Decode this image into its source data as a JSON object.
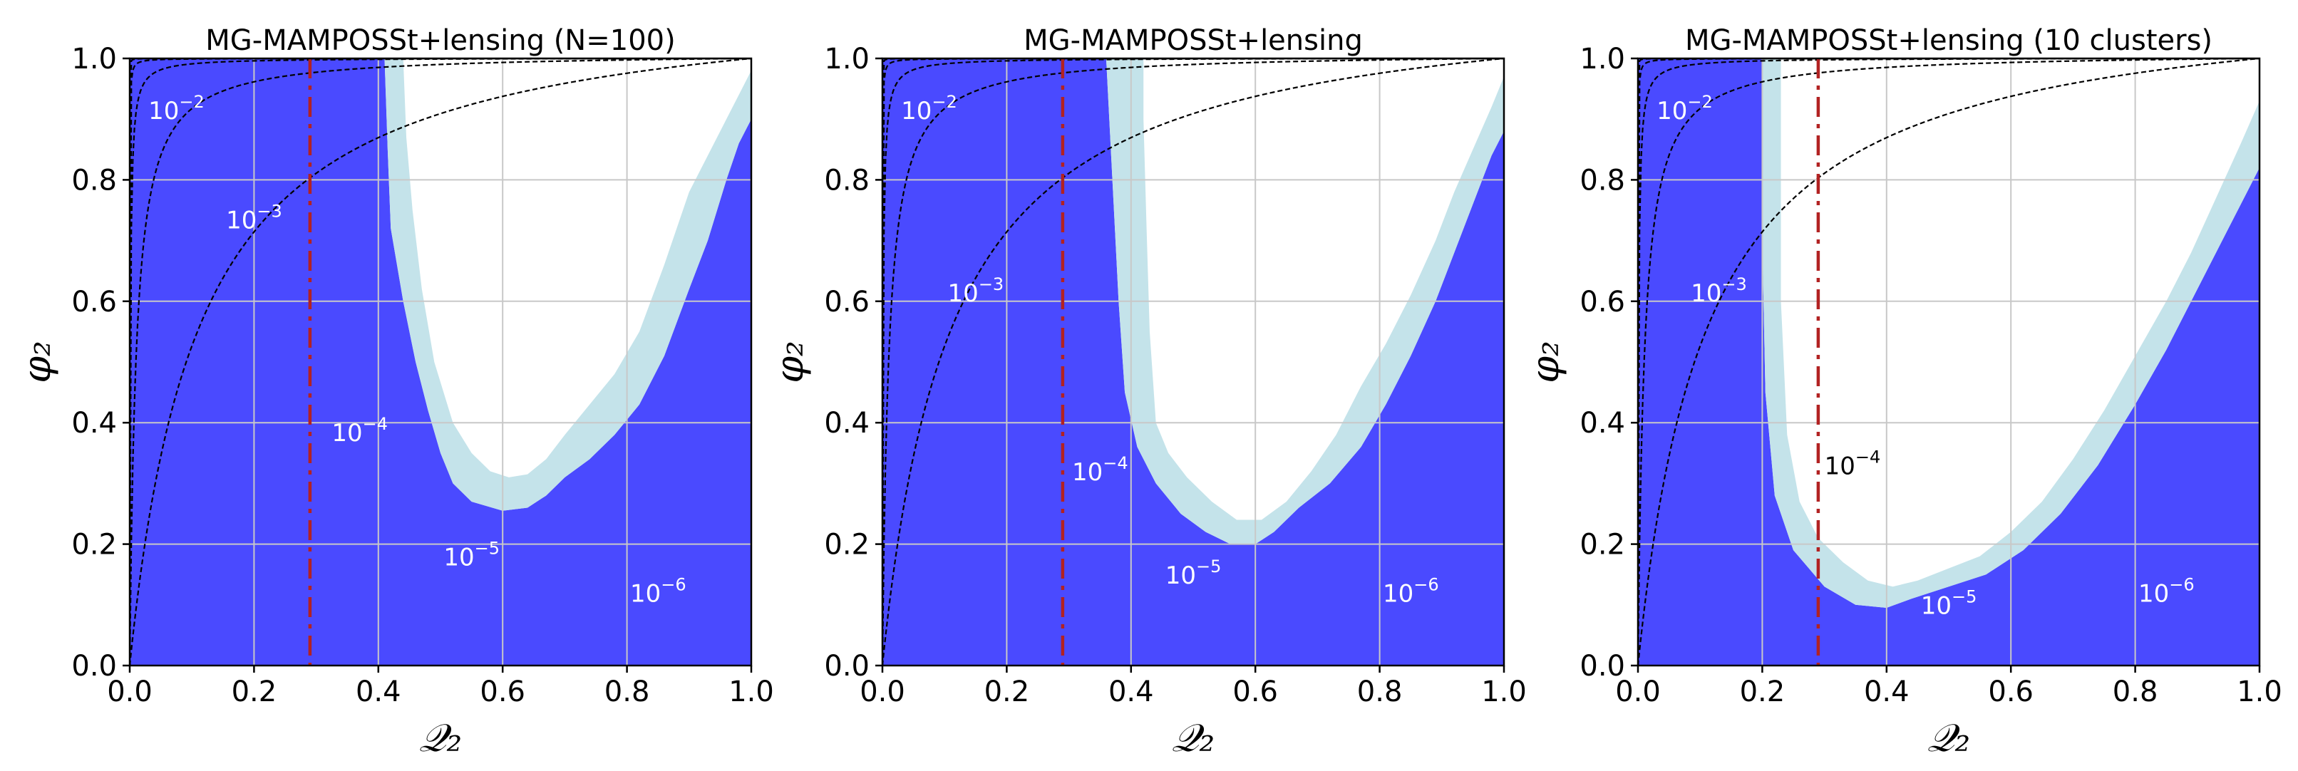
{
  "colors": {
    "excluded_dark": "#4a4aff",
    "excluded_light": "#c4e3ea",
    "grid": "#c8c8c8",
    "contour": "#000000",
    "vline": "#b22222",
    "label_light": "#ffffff",
    "label_dark": "#000000"
  },
  "chart_data": [
    {
      "type": "area",
      "title": "MG-MAMPOSSt+lensing (N=100)",
      "xlabel": "𝒬₂",
      "ylabel": "φ₂",
      "xlim": [
        0,
        1
      ],
      "ylim": [
        0,
        1
      ],
      "xticks": [
        "0.0",
        "0.2",
        "0.4",
        "0.6",
        "0.8",
        "1.0"
      ],
      "yticks": [
        "0.0",
        "0.2",
        "0.4",
        "0.6",
        "0.8",
        "1.0"
      ],
      "grid": true,
      "vline_x": 0.29,
      "light_region": [
        [
          0.41,
          1.0
        ],
        [
          0.415,
          0.85
        ],
        [
          0.42,
          0.72
        ],
        [
          0.44,
          0.6
        ],
        [
          0.46,
          0.5
        ],
        [
          0.48,
          0.42
        ],
        [
          0.5,
          0.35
        ],
        [
          0.52,
          0.3
        ],
        [
          0.55,
          0.27
        ],
        [
          0.6,
          0.255
        ],
        [
          0.64,
          0.26
        ],
        [
          0.67,
          0.28
        ],
        [
          0.7,
          0.31
        ],
        [
          0.74,
          0.34
        ],
        [
          0.78,
          0.38
        ],
        [
          0.82,
          0.43
        ],
        [
          0.86,
          0.51
        ],
        [
          0.9,
          0.62
        ],
        [
          0.93,
          0.7
        ],
        [
          0.96,
          0.8
        ],
        [
          0.98,
          0.86
        ],
        [
          1.0,
          0.9
        ],
        [
          1.0,
          0.98
        ],
        [
          0.98,
          0.94
        ],
        [
          0.95,
          0.88
        ],
        [
          0.9,
          0.78
        ],
        [
          0.86,
          0.66
        ],
        [
          0.82,
          0.55
        ],
        [
          0.78,
          0.48
        ],
        [
          0.74,
          0.43
        ],
        [
          0.7,
          0.38
        ],
        [
          0.67,
          0.34
        ],
        [
          0.64,
          0.315
        ],
        [
          0.61,
          0.31
        ],
        [
          0.58,
          0.32
        ],
        [
          0.55,
          0.35
        ],
        [
          0.52,
          0.4
        ],
        [
          0.49,
          0.5
        ],
        [
          0.47,
          0.62
        ],
        [
          0.455,
          0.75
        ],
        [
          0.445,
          0.87
        ],
        [
          0.44,
          1.0
        ]
      ],
      "dark_boundary": [
        [
          0.41,
          1.0
        ],
        [
          0.415,
          0.85
        ],
        [
          0.42,
          0.72
        ],
        [
          0.44,
          0.6
        ],
        [
          0.46,
          0.5
        ],
        [
          0.48,
          0.42
        ],
        [
          0.5,
          0.35
        ],
        [
          0.52,
          0.3
        ],
        [
          0.55,
          0.27
        ],
        [
          0.6,
          0.255
        ],
        [
          0.64,
          0.26
        ],
        [
          0.67,
          0.28
        ],
        [
          0.7,
          0.31
        ],
        [
          0.74,
          0.34
        ],
        [
          0.78,
          0.38
        ],
        [
          0.82,
          0.43
        ],
        [
          0.86,
          0.51
        ],
        [
          0.9,
          0.62
        ],
        [
          0.93,
          0.7
        ],
        [
          0.96,
          0.8
        ],
        [
          0.98,
          0.86
        ],
        [
          1.0,
          0.9
        ]
      ],
      "contour_exponents": [
        -2,
        -3,
        -4,
        -5,
        -6
      ],
      "contour_labels": [
        {
          "text": "10",
          "exp": "−2",
          "x": 0.03,
          "y": 0.9,
          "dark": false
        },
        {
          "text": "10",
          "exp": "−3",
          "x": 0.155,
          "y": 0.72,
          "dark": false
        },
        {
          "text": "10",
          "exp": "−4",
          "x": 0.325,
          "y": 0.37,
          "dark": false
        },
        {
          "text": "10",
          "exp": "−5",
          "x": 0.505,
          "y": 0.165,
          "dark": false
        },
        {
          "text": "10",
          "exp": "−6",
          "x": 0.805,
          "y": 0.105,
          "dark": false
        }
      ]
    },
    {
      "type": "area",
      "title": "MG-MAMPOSSt+lensing",
      "xlabel": "𝒬₂",
      "ylabel": "φ₂",
      "xlim": [
        0,
        1
      ],
      "ylim": [
        0,
        1
      ],
      "xticks": [
        "0.0",
        "0.2",
        "0.4",
        "0.6",
        "0.8",
        "1.0"
      ],
      "yticks": [
        "0.0",
        "0.2",
        "0.4",
        "0.6",
        "0.8",
        "1.0"
      ],
      "grid": true,
      "vline_x": 0.29,
      "light_region": [
        [
          0.36,
          1.0
        ],
        [
          0.37,
          0.8
        ],
        [
          0.38,
          0.6
        ],
        [
          0.39,
          0.45
        ],
        [
          0.41,
          0.36
        ],
        [
          0.44,
          0.3
        ],
        [
          0.48,
          0.25
        ],
        [
          0.52,
          0.22
        ],
        [
          0.56,
          0.2
        ],
        [
          0.6,
          0.2
        ],
        [
          0.63,
          0.22
        ],
        [
          0.67,
          0.26
        ],
        [
          0.72,
          0.3
        ],
        [
          0.77,
          0.36
        ],
        [
          0.81,
          0.43
        ],
        [
          0.85,
          0.51
        ],
        [
          0.89,
          0.6
        ],
        [
          0.92,
          0.68
        ],
        [
          0.95,
          0.76
        ],
        [
          0.98,
          0.84
        ],
        [
          1.0,
          0.88
        ],
        [
          1.0,
          0.97
        ],
        [
          0.98,
          0.92
        ],
        [
          0.95,
          0.85
        ],
        [
          0.92,
          0.78
        ],
        [
          0.89,
          0.7
        ],
        [
          0.85,
          0.61
        ],
        [
          0.81,
          0.53
        ],
        [
          0.77,
          0.46
        ],
        [
          0.73,
          0.38
        ],
        [
          0.69,
          0.32
        ],
        [
          0.65,
          0.27
        ],
        [
          0.61,
          0.24
        ],
        [
          0.57,
          0.24
        ],
        [
          0.53,
          0.27
        ],
        [
          0.49,
          0.31
        ],
        [
          0.46,
          0.35
        ],
        [
          0.44,
          0.4
        ],
        [
          0.43,
          0.55
        ],
        [
          0.425,
          0.72
        ],
        [
          0.42,
          0.9
        ],
        [
          0.42,
          1.0
        ]
      ],
      "dark_boundary": [
        [
          0.36,
          1.0
        ],
        [
          0.37,
          0.8
        ],
        [
          0.38,
          0.6
        ],
        [
          0.39,
          0.45
        ],
        [
          0.41,
          0.36
        ],
        [
          0.44,
          0.3
        ],
        [
          0.48,
          0.25
        ],
        [
          0.52,
          0.22
        ],
        [
          0.56,
          0.2
        ],
        [
          0.6,
          0.2
        ],
        [
          0.63,
          0.22
        ],
        [
          0.67,
          0.26
        ],
        [
          0.72,
          0.3
        ],
        [
          0.77,
          0.36
        ],
        [
          0.81,
          0.43
        ],
        [
          0.85,
          0.51
        ],
        [
          0.89,
          0.6
        ],
        [
          0.92,
          0.68
        ],
        [
          0.95,
          0.76
        ],
        [
          0.98,
          0.84
        ],
        [
          1.0,
          0.88
        ]
      ],
      "contour_exponents": [
        -2,
        -3,
        -4,
        -5,
        -6
      ],
      "contour_labels": [
        {
          "text": "10",
          "exp": "−2",
          "x": 0.03,
          "y": 0.9,
          "dark": false
        },
        {
          "text": "10",
          "exp": "−3",
          "x": 0.105,
          "y": 0.6,
          "dark": false
        },
        {
          "text": "10",
          "exp": "−4",
          "x": 0.305,
          "y": 0.305,
          "dark": false
        },
        {
          "text": "10",
          "exp": "−5",
          "x": 0.455,
          "y": 0.135,
          "dark": false
        },
        {
          "text": "10",
          "exp": "−6",
          "x": 0.805,
          "y": 0.105,
          "dark": false
        }
      ]
    },
    {
      "type": "area",
      "title": "MG-MAMPOSSt+lensing (10 clusters)",
      "xlabel": "𝒬₂",
      "ylabel": "φ₂",
      "xlim": [
        0,
        1
      ],
      "ylim": [
        0,
        1
      ],
      "xticks": [
        "0.0",
        "0.2",
        "0.4",
        "0.6",
        "0.8",
        "1.0"
      ],
      "yticks": [
        "0.0",
        "0.2",
        "0.4",
        "0.6",
        "0.8",
        "1.0"
      ],
      "grid": true,
      "vline_x": 0.29,
      "light_region": [
        [
          0.2,
          1.0
        ],
        [
          0.2,
          0.7
        ],
        [
          0.205,
          0.45
        ],
        [
          0.22,
          0.28
        ],
        [
          0.25,
          0.19
        ],
        [
          0.3,
          0.13
        ],
        [
          0.35,
          0.1
        ],
        [
          0.4,
          0.095
        ],
        [
          0.44,
          0.11
        ],
        [
          0.5,
          0.13
        ],
        [
          0.56,
          0.15
        ],
        [
          0.62,
          0.19
        ],
        [
          0.68,
          0.25
        ],
        [
          0.74,
          0.33
        ],
        [
          0.8,
          0.43
        ],
        [
          0.85,
          0.52
        ],
        [
          0.9,
          0.62
        ],
        [
          0.95,
          0.72
        ],
        [
          0.98,
          0.78
        ],
        [
          1.0,
          0.82
        ],
        [
          1.0,
          0.93
        ],
        [
          0.97,
          0.86
        ],
        [
          0.93,
          0.77
        ],
        [
          0.89,
          0.68
        ],
        [
          0.85,
          0.6
        ],
        [
          0.8,
          0.51
        ],
        [
          0.75,
          0.42
        ],
        [
          0.7,
          0.34
        ],
        [
          0.65,
          0.27
        ],
        [
          0.6,
          0.22
        ],
        [
          0.55,
          0.18
        ],
        [
          0.5,
          0.16
        ],
        [
          0.45,
          0.14
        ],
        [
          0.41,
          0.13
        ],
        [
          0.37,
          0.14
        ],
        [
          0.33,
          0.17
        ],
        [
          0.29,
          0.21
        ],
        [
          0.26,
          0.27
        ],
        [
          0.24,
          0.38
        ],
        [
          0.23,
          0.6
        ],
        [
          0.23,
          1.0
        ]
      ],
      "dark_boundary": [
        [
          0.2,
          1.0
        ],
        [
          0.2,
          0.7
        ],
        [
          0.205,
          0.45
        ],
        [
          0.22,
          0.28
        ],
        [
          0.25,
          0.19
        ],
        [
          0.3,
          0.13
        ],
        [
          0.35,
          0.1
        ],
        [
          0.4,
          0.095
        ],
        [
          0.44,
          0.11
        ],
        [
          0.5,
          0.13
        ],
        [
          0.56,
          0.15
        ],
        [
          0.62,
          0.19
        ],
        [
          0.68,
          0.25
        ],
        [
          0.74,
          0.33
        ],
        [
          0.8,
          0.43
        ],
        [
          0.85,
          0.52
        ],
        [
          0.9,
          0.62
        ],
        [
          0.95,
          0.72
        ],
        [
          0.98,
          0.78
        ],
        [
          1.0,
          0.82
        ]
      ],
      "contour_exponents": [
        -2,
        -3,
        -4,
        -5,
        -6
      ],
      "contour_labels": [
        {
          "text": "10",
          "exp": "−2",
          "x": 0.03,
          "y": 0.9,
          "dark": false
        },
        {
          "text": "10",
          "exp": "−3",
          "x": 0.085,
          "y": 0.6,
          "dark": false
        },
        {
          "text": "10",
          "exp": "−4",
          "x": 0.3,
          "y": 0.315,
          "dark": true
        },
        {
          "text": "10",
          "exp": "−5",
          "x": 0.455,
          "y": 0.085,
          "dark": false
        },
        {
          "text": "10",
          "exp": "−6",
          "x": 0.805,
          "y": 0.105,
          "dark": false
        }
      ]
    }
  ]
}
